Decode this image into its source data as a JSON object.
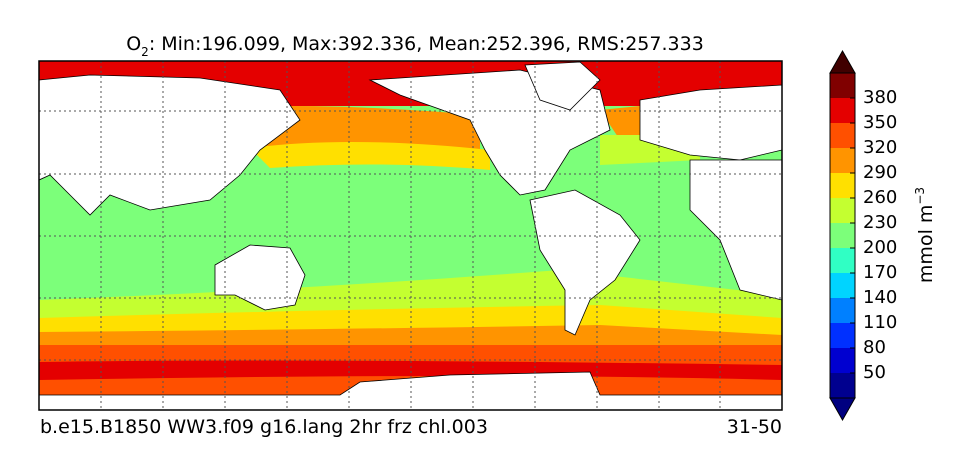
{
  "header": {
    "species": "O",
    "subscript": "2",
    "stats": ": Min:196.099, Max:392.336, Mean:252.396, RMS:257.333"
  },
  "colorbar": {
    "ticks": [
      50,
      80,
      110,
      140,
      170,
      200,
      230,
      260,
      290,
      320,
      350,
      380
    ],
    "colors": [
      "#00008f",
      "#0000d0",
      "#0030ff",
      "#0080ff",
      "#00d4ff",
      "#30ffc4",
      "#7cff7a",
      "#c4ff30",
      "#ffe000",
      "#ff9400",
      "#ff5000",
      "#e40000",
      "#800000"
    ],
    "under_color": "#000080",
    "over_color": "#400000",
    "units": {
      "base": "mmol m",
      "superscript": "−3"
    }
  },
  "footer": {
    "case": "b.e15.B1850 WW3.f09 g16.lang 2hr frz chl.003",
    "years": "31-50"
  }
}
